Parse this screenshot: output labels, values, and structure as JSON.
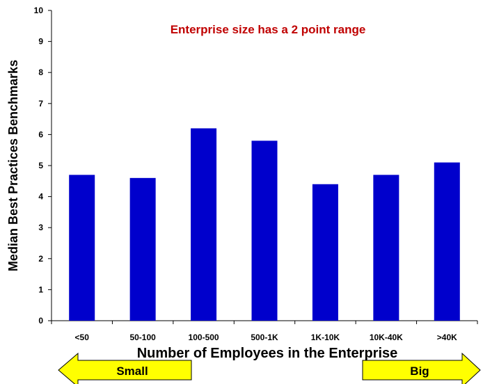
{
  "chart_data": {
    "type": "bar",
    "title": "",
    "annotation": "Enterprise size has a 2 point range",
    "xlabel": "Number of Employees in the Enterprise",
    "ylabel": "Median Best Practices Benchmarks",
    "categories": [
      "<50",
      "50-100",
      "100-500",
      "500-1K",
      "1K-10K",
      "10K-40K",
      ">40K"
    ],
    "values": [
      4.7,
      4.6,
      6.2,
      5.8,
      4.4,
      4.7,
      5.1
    ],
    "ylim": [
      0,
      10
    ],
    "yticks": [
      0,
      1,
      2,
      3,
      4,
      5,
      6,
      7,
      8,
      9,
      10
    ],
    "grid": false,
    "legend": "none",
    "colors": {
      "bar": "#0000CC",
      "annotation": "#C00000",
      "arrow_fill": "#FFFF00"
    }
  },
  "arrows": {
    "left_label": "Small",
    "right_label": "Big"
  }
}
